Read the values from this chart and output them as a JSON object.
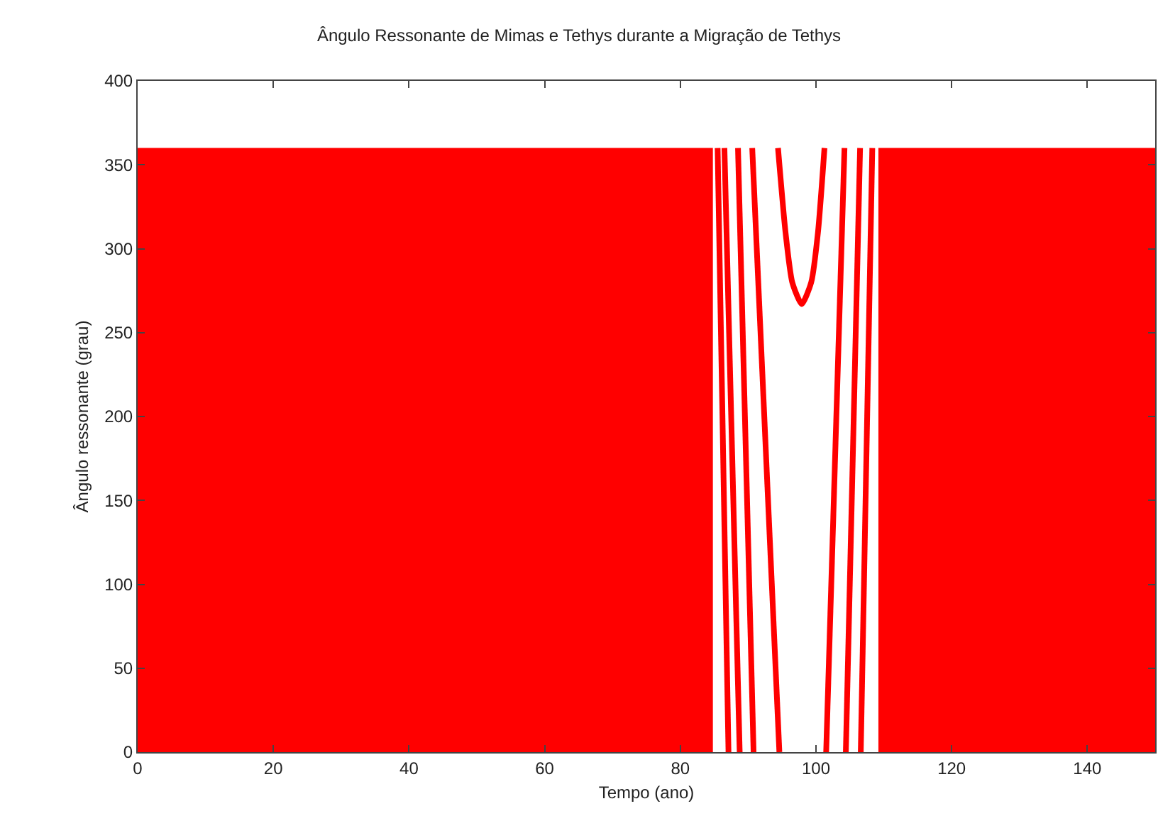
{
  "chart_data": {
    "type": "line",
    "title": "Ângulo Ressonante de Mimas e Tethys durante a Migração de Tethys",
    "xlabel": "Tempo (ano)",
    "ylabel": "Ângulo ressonante (grau)",
    "xlim": [
      0,
      150
    ],
    "xticks": [
      0,
      20,
      40,
      60,
      80,
      100,
      120,
      140
    ],
    "ylim": [
      0,
      400
    ],
    "yticks": [
      0,
      50,
      100,
      150,
      200,
      250,
      300,
      350,
      400
    ],
    "marker": "none",
    "line_style": "solid",
    "series": [
      {
        "type": "area",
        "color": "#ff0000",
        "x": [
          0,
          84.8
        ],
        "values": [
          360,
          360
        ]
      },
      {
        "type": "area",
        "color": "#ff0000",
        "x": [
          109.2,
          150
        ],
        "values": [
          360,
          360
        ]
      },
      {
        "color": "#ff0000",
        "x": [
          85.5,
          87.1
        ],
        "values": [
          360,
          0
        ]
      },
      {
        "color": "#ff0000",
        "x": [
          86.5,
          88.75
        ],
        "values": [
          360,
          0
        ]
      },
      {
        "color": "#ff0000",
        "x": [
          88.5,
          90.8
        ],
        "values": [
          360,
          0
        ]
      },
      {
        "color": "#ff0000",
        "x": [
          90.6,
          94.6
        ],
        "values": [
          360,
          0
        ]
      },
      {
        "color": "#ff0000",
        "x": [
          94.4,
          95.5,
          96.5,
          97.9,
          99.3,
          100.3,
          101.25
        ],
        "values": [
          360,
          310,
          280,
          267,
          280,
          310,
          360
        ]
      },
      {
        "color": "#ff0000",
        "x": [
          101.5,
          104.2
        ],
        "values": [
          0,
          360
        ]
      },
      {
        "color": "#ff0000",
        "x": [
          104.4,
          106.5
        ],
        "values": [
          0,
          360
        ]
      },
      {
        "color": "#ff0000",
        "x": [
          106.6,
          108.3
        ],
        "values": [
          0,
          360
        ]
      }
    ]
  }
}
